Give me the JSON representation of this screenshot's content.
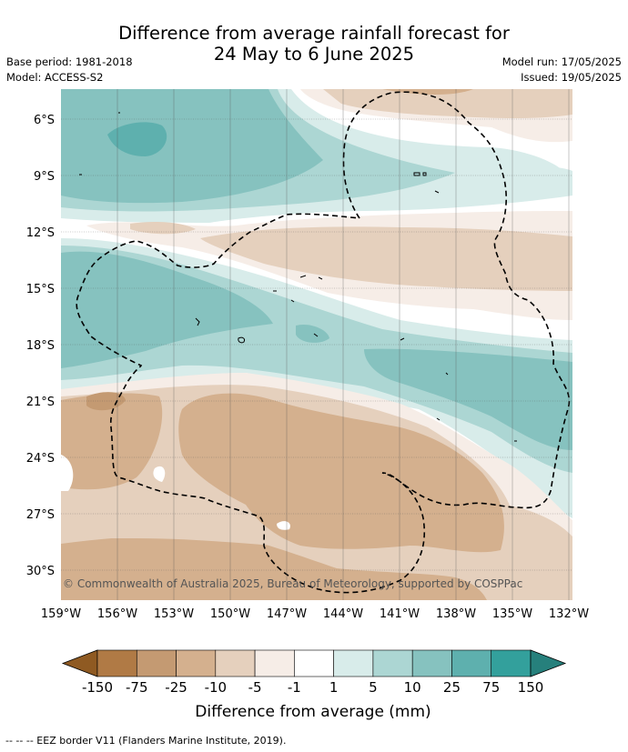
{
  "title": {
    "line1": "Difference from average rainfall forecast for",
    "line2": "24 May to 6 June 2025"
  },
  "meta": {
    "base_period": "Base period: 1981-2018",
    "model": "Model: ACCESS-S2",
    "model_run": "Model run: 17/05/2025",
    "issued": "Issued: 19/05/2025"
  },
  "axes": {
    "lat_labels": [
      "6°S",
      "9°S",
      "12°S",
      "15°S",
      "18°S",
      "21°S",
      "24°S",
      "27°S",
      "30°S"
    ],
    "lon_labels": [
      "159°W",
      "156°W",
      "153°W",
      "150°W",
      "147°W",
      "144°W",
      "141°W",
      "138°W",
      "135°W",
      "132°W"
    ]
  },
  "copyright": "© Commonwealth of Australia 2025, Bureau of Meteorology, supported by COSPPac",
  "colorbar": {
    "labels": [
      "-150",
      "-75",
      "-25",
      "-10",
      "-5",
      "-1",
      "1",
      "5",
      "10",
      "25",
      "75",
      "150"
    ],
    "colors": [
      "#8f5a22",
      "#b07a45",
      "#c49a72",
      "#d4b08e",
      "#e5d0bd",
      "#f6ede7",
      "#ffffff",
      "#d8ecea",
      "#acd6d3",
      "#86c2bf",
      "#5eb0ae",
      "#33a09c",
      "#26807c"
    ],
    "title": "Difference from average (mm)"
  },
  "footnote": "--  --  -- EEZ border V11 (Flanders Marine Institute, 2019)."
}
